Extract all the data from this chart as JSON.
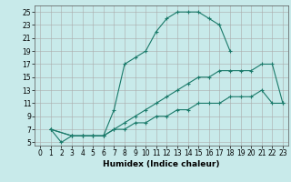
{
  "xlabel": "Humidex (Indice chaleur)",
  "ylabel": "",
  "background_color": "#c8eaea",
  "line_color": "#1a7a6a",
  "xlim": [
    -0.5,
    23.5
  ],
  "ylim": [
    4.5,
    26
  ],
  "xticks": [
    0,
    1,
    2,
    3,
    4,
    5,
    6,
    7,
    8,
    9,
    10,
    11,
    12,
    13,
    14,
    15,
    16,
    17,
    18,
    19,
    20,
    21,
    22,
    23
  ],
  "yticks": [
    5,
    7,
    9,
    11,
    13,
    15,
    17,
    19,
    21,
    23,
    25
  ],
  "line1_x": [
    1,
    2,
    3,
    4,
    5,
    6,
    7,
    8,
    9,
    10,
    11,
    12,
    13,
    14,
    15,
    16,
    17,
    18
  ],
  "line1_y": [
    7,
    5,
    6,
    6,
    6,
    6,
    10,
    17,
    18,
    19,
    22,
    24,
    25,
    25,
    25,
    24,
    23,
    19
  ],
  "line2_x": [
    1,
    3,
    4,
    5,
    6,
    7,
    8,
    9,
    10,
    11,
    12,
    13,
    14,
    15,
    16,
    17,
    18,
    19,
    20,
    21,
    22,
    23
  ],
  "line2_y": [
    7,
    6,
    6,
    6,
    6,
    7,
    8,
    9,
    10,
    11,
    12,
    13,
    14,
    15,
    15,
    16,
    16,
    16,
    16,
    17,
    17,
    11
  ],
  "line3_x": [
    1,
    3,
    4,
    5,
    6,
    7,
    8,
    9,
    10,
    11,
    12,
    13,
    14,
    15,
    16,
    17,
    18,
    19,
    20,
    21,
    22,
    23
  ],
  "line3_y": [
    7,
    6,
    6,
    6,
    6,
    7,
    7,
    8,
    8,
    9,
    9,
    10,
    10,
    11,
    11,
    11,
    12,
    12,
    12,
    13,
    11,
    11
  ],
  "tick_fontsize": 5.5,
  "xlabel_fontsize": 6.5,
  "grid_color": "#aaaaaa",
  "grid_linewidth": 0.4,
  "line_linewidth": 0.8,
  "marker_size": 3
}
